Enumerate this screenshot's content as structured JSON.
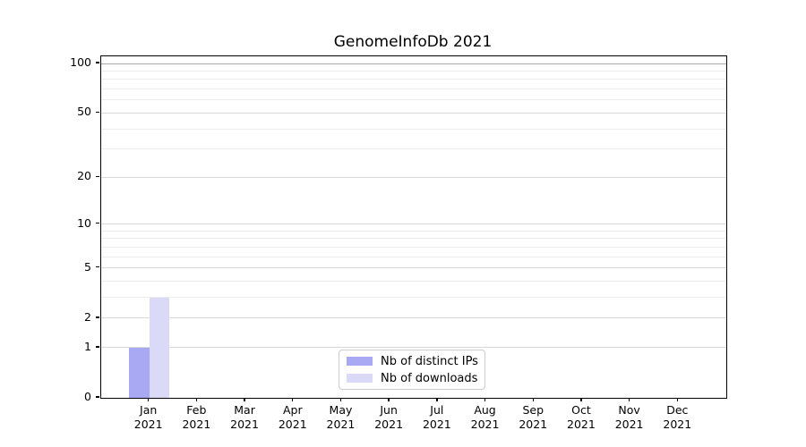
{
  "chart_data": {
    "type": "bar",
    "title": "GenomeInfoDb 2021",
    "categories": [
      "Jan",
      "Feb",
      "Mar",
      "Apr",
      "May",
      "Jun",
      "Jul",
      "Aug",
      "Sep",
      "Oct",
      "Nov",
      "Dec"
    ],
    "category_year": "2021",
    "series": [
      {
        "name": "Nb of distinct IPs",
        "color": "#a9a9f3",
        "values": [
          1,
          0,
          0,
          0,
          0,
          0,
          0,
          0,
          0,
          0,
          0,
          0
        ]
      },
      {
        "name": "Nb of downloads",
        "color": "#dadaf8",
        "values": [
          3,
          0,
          0,
          0,
          0,
          0,
          0,
          0,
          0,
          0,
          0,
          0
        ]
      }
    ],
    "y_axis": {
      "scale": "log1p",
      "max": 100,
      "major_ticks": [
        0,
        1,
        2,
        5,
        10,
        20,
        50,
        100
      ],
      "minor_ticks": [
        3,
        4,
        6,
        7,
        8,
        9,
        30,
        40,
        60,
        70,
        80,
        90
      ]
    },
    "grid": true,
    "legend_position": "bottom-center",
    "colors": {
      "grid_top": "#a9a9a9",
      "grid_major": "#d8d8d8",
      "grid_minor": "#ececec",
      "axis": "#000000"
    }
  }
}
